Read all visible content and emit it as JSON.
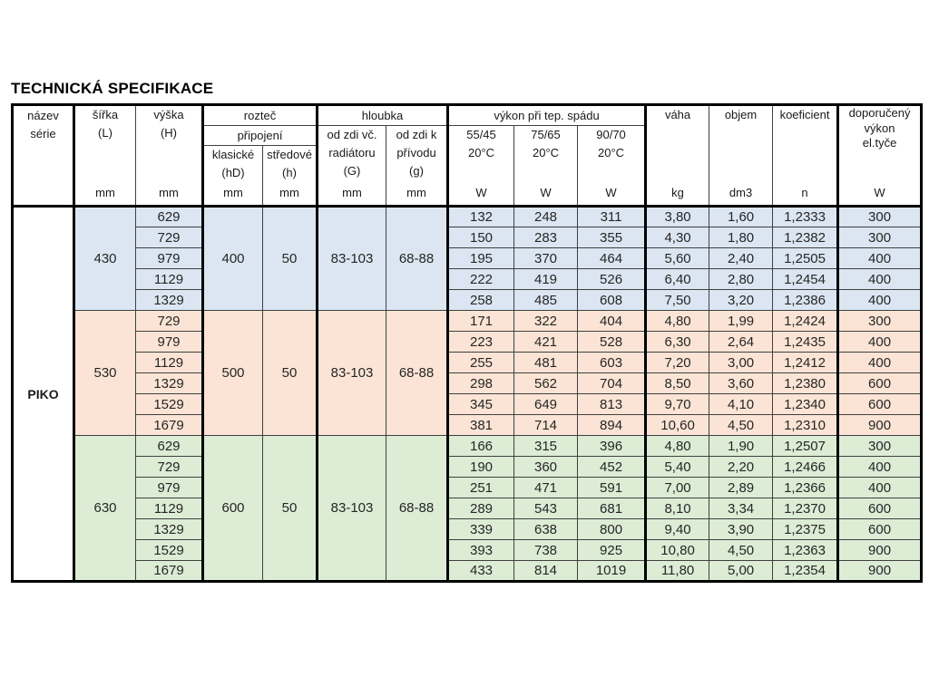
{
  "title": "TECHNICKÁ SPECIFIKACE",
  "table": {
    "series_name": "PIKO",
    "header": {
      "nazev_serie": "název\nsérie",
      "sirka": "šířka\n(L)",
      "vyska": "výška\n(H)",
      "roztec": "rozteč",
      "pripojeni": "připojení",
      "klasicke": "klasické\n(hD)",
      "stredove": "středové\n(h)",
      "hloubka": "hloubka",
      "od_zdi_vc": "od zdi vč.\nradiátoru\n(G)",
      "od_zdi_k": "od zdi k\npřívodu\n(g)",
      "vykon": "výkon při tep. spádu",
      "col_5545": "55/45\n20°C",
      "col_7565": "75/65\n20°C",
      "col_9070": "90/70\n20°C",
      "vaha": "váha",
      "objem": "objem",
      "koeficient": "koeficient",
      "doporuceny": "doporučený\nvýkon\nel.tyče",
      "unit_mm": "mm",
      "unit_w": "W",
      "unit_kg": "kg",
      "unit_dm3": "dm3",
      "unit_n": "n"
    },
    "groups": [
      {
        "color": "#dbe6f2",
        "sirka": "430",
        "klasicke": "400",
        "stredove": "50",
        "od_zdi_vc": "83-103",
        "od_zdi_k": "68-88",
        "rows": [
          {
            "vyska": "629",
            "w5545": "132",
            "w7565": "248",
            "w9070": "311",
            "vaha": "3,80",
            "objem": "1,60",
            "koef": "1,2333",
            "dopor": "300"
          },
          {
            "vyska": "729",
            "w5545": "150",
            "w7565": "283",
            "w9070": "355",
            "vaha": "4,30",
            "objem": "1,80",
            "koef": "1,2382",
            "dopor": "300"
          },
          {
            "vyska": "979",
            "w5545": "195",
            "w7565": "370",
            "w9070": "464",
            "vaha": "5,60",
            "objem": "2,40",
            "koef": "1,2505",
            "dopor": "400"
          },
          {
            "vyska": "1129",
            "w5545": "222",
            "w7565": "419",
            "w9070": "526",
            "vaha": "6,40",
            "objem": "2,80",
            "koef": "1,2454",
            "dopor": "400"
          },
          {
            "vyska": "1329",
            "w5545": "258",
            "w7565": "485",
            "w9070": "608",
            "vaha": "7,50",
            "objem": "3,20",
            "koef": "1,2386",
            "dopor": "400"
          }
        ]
      },
      {
        "color": "#fbe4d5",
        "sirka": "530",
        "klasicke": "500",
        "stredove": "50",
        "od_zdi_vc": "83-103",
        "od_zdi_k": "68-88",
        "rows": [
          {
            "vyska": "729",
            "w5545": "171",
            "w7565": "322",
            "w9070": "404",
            "vaha": "4,80",
            "objem": "1,99",
            "koef": "1,2424",
            "dopor": "300"
          },
          {
            "vyska": "979",
            "w5545": "223",
            "w7565": "421",
            "w9070": "528",
            "vaha": "6,30",
            "objem": "2,64",
            "koef": "1,2435",
            "dopor": "400"
          },
          {
            "vyska": "1129",
            "w5545": "255",
            "w7565": "481",
            "w9070": "603",
            "vaha": "7,20",
            "objem": "3,00",
            "koef": "1,2412",
            "dopor": "400"
          },
          {
            "vyska": "1329",
            "w5545": "298",
            "w7565": "562",
            "w9070": "704",
            "vaha": "8,50",
            "objem": "3,60",
            "koef": "1,2380",
            "dopor": "600"
          },
          {
            "vyska": "1529",
            "w5545": "345",
            "w7565": "649",
            "w9070": "813",
            "vaha": "9,70",
            "objem": "4,10",
            "koef": "1,2340",
            "dopor": "600"
          },
          {
            "vyska": "1679",
            "w5545": "381",
            "w7565": "714",
            "w9070": "894",
            "vaha": "10,60",
            "objem": "4,50",
            "koef": "1,2310",
            "dopor": "900"
          }
        ]
      },
      {
        "color": "#dcecd5",
        "sirka": "630",
        "klasicke": "600",
        "stredove": "50",
        "od_zdi_vc": "83-103",
        "od_zdi_k": "68-88",
        "rows": [
          {
            "vyska": "629",
            "w5545": "166",
            "w7565": "315",
            "w9070": "396",
            "vaha": "4,80",
            "objem": "1,90",
            "koef": "1,2507",
            "dopor": "300"
          },
          {
            "vyska": "729",
            "w5545": "190",
            "w7565": "360",
            "w9070": "452",
            "vaha": "5,40",
            "objem": "2,20",
            "koef": "1,2466",
            "dopor": "400"
          },
          {
            "vyska": "979",
            "w5545": "251",
            "w7565": "471",
            "w9070": "591",
            "vaha": "7,00",
            "objem": "2,89",
            "koef": "1,2366",
            "dopor": "400"
          },
          {
            "vyska": "1129",
            "w5545": "289",
            "w7565": "543",
            "w9070": "681",
            "vaha": "8,10",
            "objem": "3,34",
            "koef": "1,2370",
            "dopor": "600"
          },
          {
            "vyska": "1329",
            "w5545": "339",
            "w7565": "638",
            "w9070": "800",
            "vaha": "9,40",
            "objem": "3,90",
            "koef": "1,2375",
            "dopor": "600"
          },
          {
            "vyska": "1529",
            "w5545": "393",
            "w7565": "738",
            "w9070": "925",
            "vaha": "10,80",
            "objem": "4,50",
            "koef": "1,2363",
            "dopor": "900"
          },
          {
            "vyska": "1679",
            "w5545": "433",
            "w7565": "814",
            "w9070": "1019",
            "vaha": "11,80",
            "objem": "5,00",
            "koef": "1,2354",
            "dopor": "900"
          }
        ]
      }
    ]
  }
}
